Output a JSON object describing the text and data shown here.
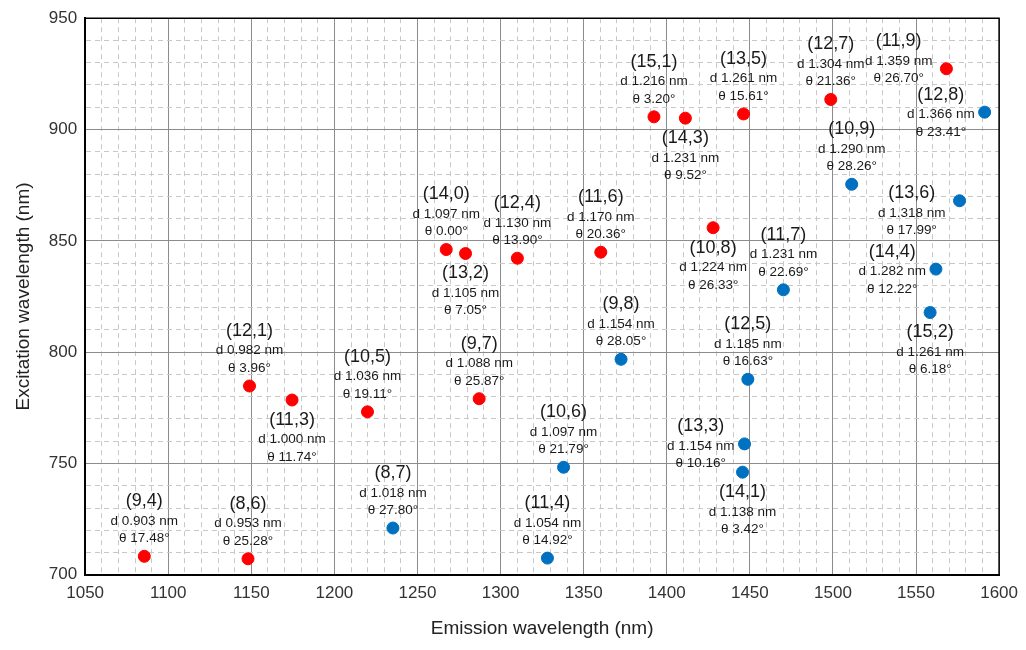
{
  "chart_data": {
    "type": "scatter",
    "xlabel": "Emission wavelength (nm)",
    "ylabel": "Excitation wavelength (nm)",
    "xlim": [
      1050,
      1600
    ],
    "ylim": [
      700,
      950
    ],
    "xticks": [
      1050,
      {
        "value": 1060,
        "label": null
      },
      {
        "value": 1070,
        "label": null
      },
      {
        "value": 1080,
        "label": null
      },
      {
        "value": 1090,
        "label": null
      },
      1100,
      {
        "value": 1110,
        "label": null
      },
      {
        "value": 1120,
        "label": null
      },
      {
        "value": 1130,
        "label": null
      },
      {
        "value": 1140,
        "label": null
      },
      1150,
      {
        "value": 1160,
        "label": null
      },
      {
        "value": 1170,
        "label": null
      },
      {
        "value": 1180,
        "label": null
      },
      {
        "value": 1190,
        "label": null
      },
      1200,
      {
        "value": 1210,
        "label": null
      },
      {
        "value": 1220,
        "label": null
      },
      {
        "value": 1230,
        "label": null
      },
      {
        "value": 1240,
        "label": null
      },
      1250,
      {
        "value": 1260,
        "label": null
      },
      {
        "value": 1270,
        "label": null
      },
      {
        "value": 1280,
        "label": null
      },
      {
        "value": 1290,
        "label": null
      },
      1300,
      {
        "value": 1310,
        "label": null
      },
      {
        "value": 1320,
        "label": null
      },
      {
        "value": 1330,
        "label": null
      },
      {
        "value": 1340,
        "label": null
      },
      1350,
      {
        "value": 1360,
        "label": null
      },
      {
        "value": 1370,
        "label": null
      },
      {
        "value": 1380,
        "label": null
      },
      {
        "value": 1390,
        "label": null
      },
      1400,
      {
        "value": 1410,
        "label": null
      },
      {
        "value": 1420,
        "label": null
      },
      {
        "value": 1430,
        "label": null
      },
      {
        "value": 1440,
        "label": null
      },
      1450,
      {
        "value": 1460,
        "label": null
      },
      {
        "value": 1470,
        "label": null
      },
      {
        "value": 1480,
        "label": null
      },
      {
        "value": 1490,
        "label": null
      },
      1500,
      {
        "value": 1510,
        "label": null
      },
      {
        "value": 1520,
        "label": null
      },
      {
        "value": 1530,
        "label": null
      },
      {
        "value": 1540,
        "label": null
      },
      1550,
      {
        "value": 1560,
        "label": null
      },
      {
        "value": 1570,
        "label": null
      },
      {
        "value": 1580,
        "label": null
      },
      {
        "value": 1590,
        "label": null
      },
      1600
    ],
    "yticks": [
      700,
      {
        "value": 710,
        "label": null
      },
      {
        "value": 720,
        "label": null
      },
      {
        "value": 730,
        "label": null
      },
      {
        "value": 740,
        "label": null
      },
      750,
      {
        "value": 760,
        "label": null
      },
      {
        "value": 770,
        "label": null
      },
      {
        "value": 780,
        "label": null
      },
      {
        "value": 790,
        "label": null
      },
      800,
      {
        "value": 810,
        "label": null
      },
      {
        "value": 820,
        "label": null
      },
      {
        "value": 830,
        "label": null
      },
      {
        "value": 840,
        "label": null
      },
      850,
      {
        "value": 860,
        "label": null
      },
      {
        "value": 870,
        "label": null
      },
      {
        "value": 880,
        "label": null
      },
      {
        "value": 890,
        "label": null
      },
      900,
      {
        "value": 910,
        "label": null
      },
      {
        "value": 920,
        "label": null
      },
      {
        "value": 930,
        "label": null
      },
      {
        "value": 940,
        "label": null
      },
      950
    ],
    "grid": true,
    "legend": false,
    "marker": "circle",
    "series": [
      {
        "color": "#ff0000",
        "x": [
          1085.6,
          1148.0,
          1148.9,
          1174.5,
          1219.9,
          1287.1,
          1267.3,
          1278.9,
          1310.1,
          1360.3,
          1392.3,
          1411.2,
          1427.9,
          1446.2,
          1498.7,
          1568.3
        ],
        "values": [
          708.3,
          707.2,
          784.8,
          778.5,
          773.2,
          779.1,
          846.1,
          844.3,
          842.2,
          844.9,
          905.7,
          905.1,
          855.9,
          907.0,
          913.5,
          927.3
        ]
      },
      {
        "color": "#0070c0",
        "x": [
          1235.2,
          1328.2,
          1337.9,
          1372.5,
          1445.6,
          1446.8,
          1448.8,
          1470.2,
          1511.3,
          1558.5,
          1562.0,
          1576.2,
          1591.3
        ],
        "values": [
          721.0,
          707.5,
          748.3,
          796.8,
          746.1,
          758.8,
          787.8,
          828.0,
          875.4,
          817.8,
          837.3,
          868.0,
          907.8
        ]
      }
    ],
    "annotations": [
      {
        "text": "(12,8)\nd 1.366 nm\nθ 23.41°",
        "x": 1591.3,
        "y": 907.8
      },
      {
        "text": "(9,4)\nd 0.903 nm\nθ 17.48°",
        "x": 1085.6,
        "y": 708.3
      },
      {
        "text": "(8,6)\nd 0.953 nm\nθ 25.28°",
        "x": 1148.0,
        "y": 707.2
      },
      {
        "text": "(12,1)\nd 0.982 nm\nθ 3.96°",
        "x": 1148.9,
        "y": 784.8
      },
      {
        "text": "(11,3)\nd 1.000 nm\nθ 11.74°",
        "x": 1174.5,
        "y": 778.5
      },
      {
        "text": "(10,5)\nd 1.036 nm\nθ 19.11°",
        "x": 1219.9,
        "y": 773.2
      },
      {
        "text": "(9,7)\nd 1.088 nm\nθ 25.87°",
        "x": 1287.1,
        "y": 779.1
      },
      {
        "text": "(14,0)\nd 1.097 nm\nθ 0.00°",
        "x": 1267.3,
        "y": 846.1
      },
      {
        "text": "(13,2)\nd 1.105 nm\nθ 7.05°",
        "x": 1278.9,
        "y": 844.3
      },
      {
        "text": "(12,4)\nd 1.130 nm\nθ 13.90°",
        "x": 1310.1,
        "y": 842.2
      },
      {
        "text": "(11,6)\nd 1.170 nm\nθ 20.36°",
        "x": 1360.3,
        "y": 844.9
      },
      {
        "text": "(15,1)\nd 1.216 nm\nθ 3.20°",
        "x": 1392.3,
        "y": 905.7
      },
      {
        "text": "(14,3)\nd 1.231 nm\nθ 9.52°",
        "x": 1411.2,
        "y": 905.1
      },
      {
        "text": "(10,8)\nd 1.224 nm\nθ 26.33°",
        "x": 1427.9,
        "y": 855.9
      },
      {
        "text": "(13,5)\nd 1.261 nm\nθ 15.61°",
        "x": 1446.2,
        "y": 907.0
      },
      {
        "text": "(12,7)\nd 1.304 nm\nθ 21.36°",
        "x": 1498.7,
        "y": 913.5
      },
      {
        "text": "(11,9)\nd 1.359 nm\nθ 26.70°",
        "x": 1568.3,
        "y": 927.3
      },
      {
        "text": "(8,7)\nd 1.018 nm\nθ 27.80°",
        "x": 1235.2,
        "y": 721.0
      },
      {
        "text": "(11,4)\nd 1.054 nm\nθ 14.92°",
        "x": 1328.2,
        "y": 707.5
      },
      {
        "text": "(10,6)\nd 1.097 nm\nθ 21.79°",
        "x": 1337.9,
        "y": 748.3
      },
      {
        "text": "(9,8)\nd 1.154 nm\nθ 28.05°",
        "x": 1372.5,
        "y": 796.8
      },
      {
        "text": "(14,1)\nd 1.138 nm\nθ 3.42°",
        "x": 1445.6,
        "y": 746.1
      },
      {
        "text": "(13,3)\nd 1.154 nm\nθ 10.16°",
        "x": 1446.8,
        "y": 758.8
      },
      {
        "text": "(12,5)\nd 1.185 nm\nθ 16.63°",
        "x": 1448.8,
        "y": 787.8
      },
      {
        "text": "(11,7)\nd 1.231 nm\nθ 22.69°",
        "x": 1470.2,
        "y": 828.0
      },
      {
        "text": "(10,9)\nd 1.290 nm\nθ 28.26°",
        "x": 1511.3,
        "y": 875.4
      },
      {
        "text": "(15,2)\nd 1.261 nm\nθ 6.18°",
        "x": 1558.5,
        "y": 817.8
      },
      {
        "text": "(14,4)\nd 1.282 nm\nθ 12.22°",
        "x": 1562.0,
        "y": 837.3
      },
      {
        "text": "(13,6)\nd 1.318 nm\nθ 17.99°",
        "x": 1576.2,
        "y": 868.0
      }
    ]
  }
}
